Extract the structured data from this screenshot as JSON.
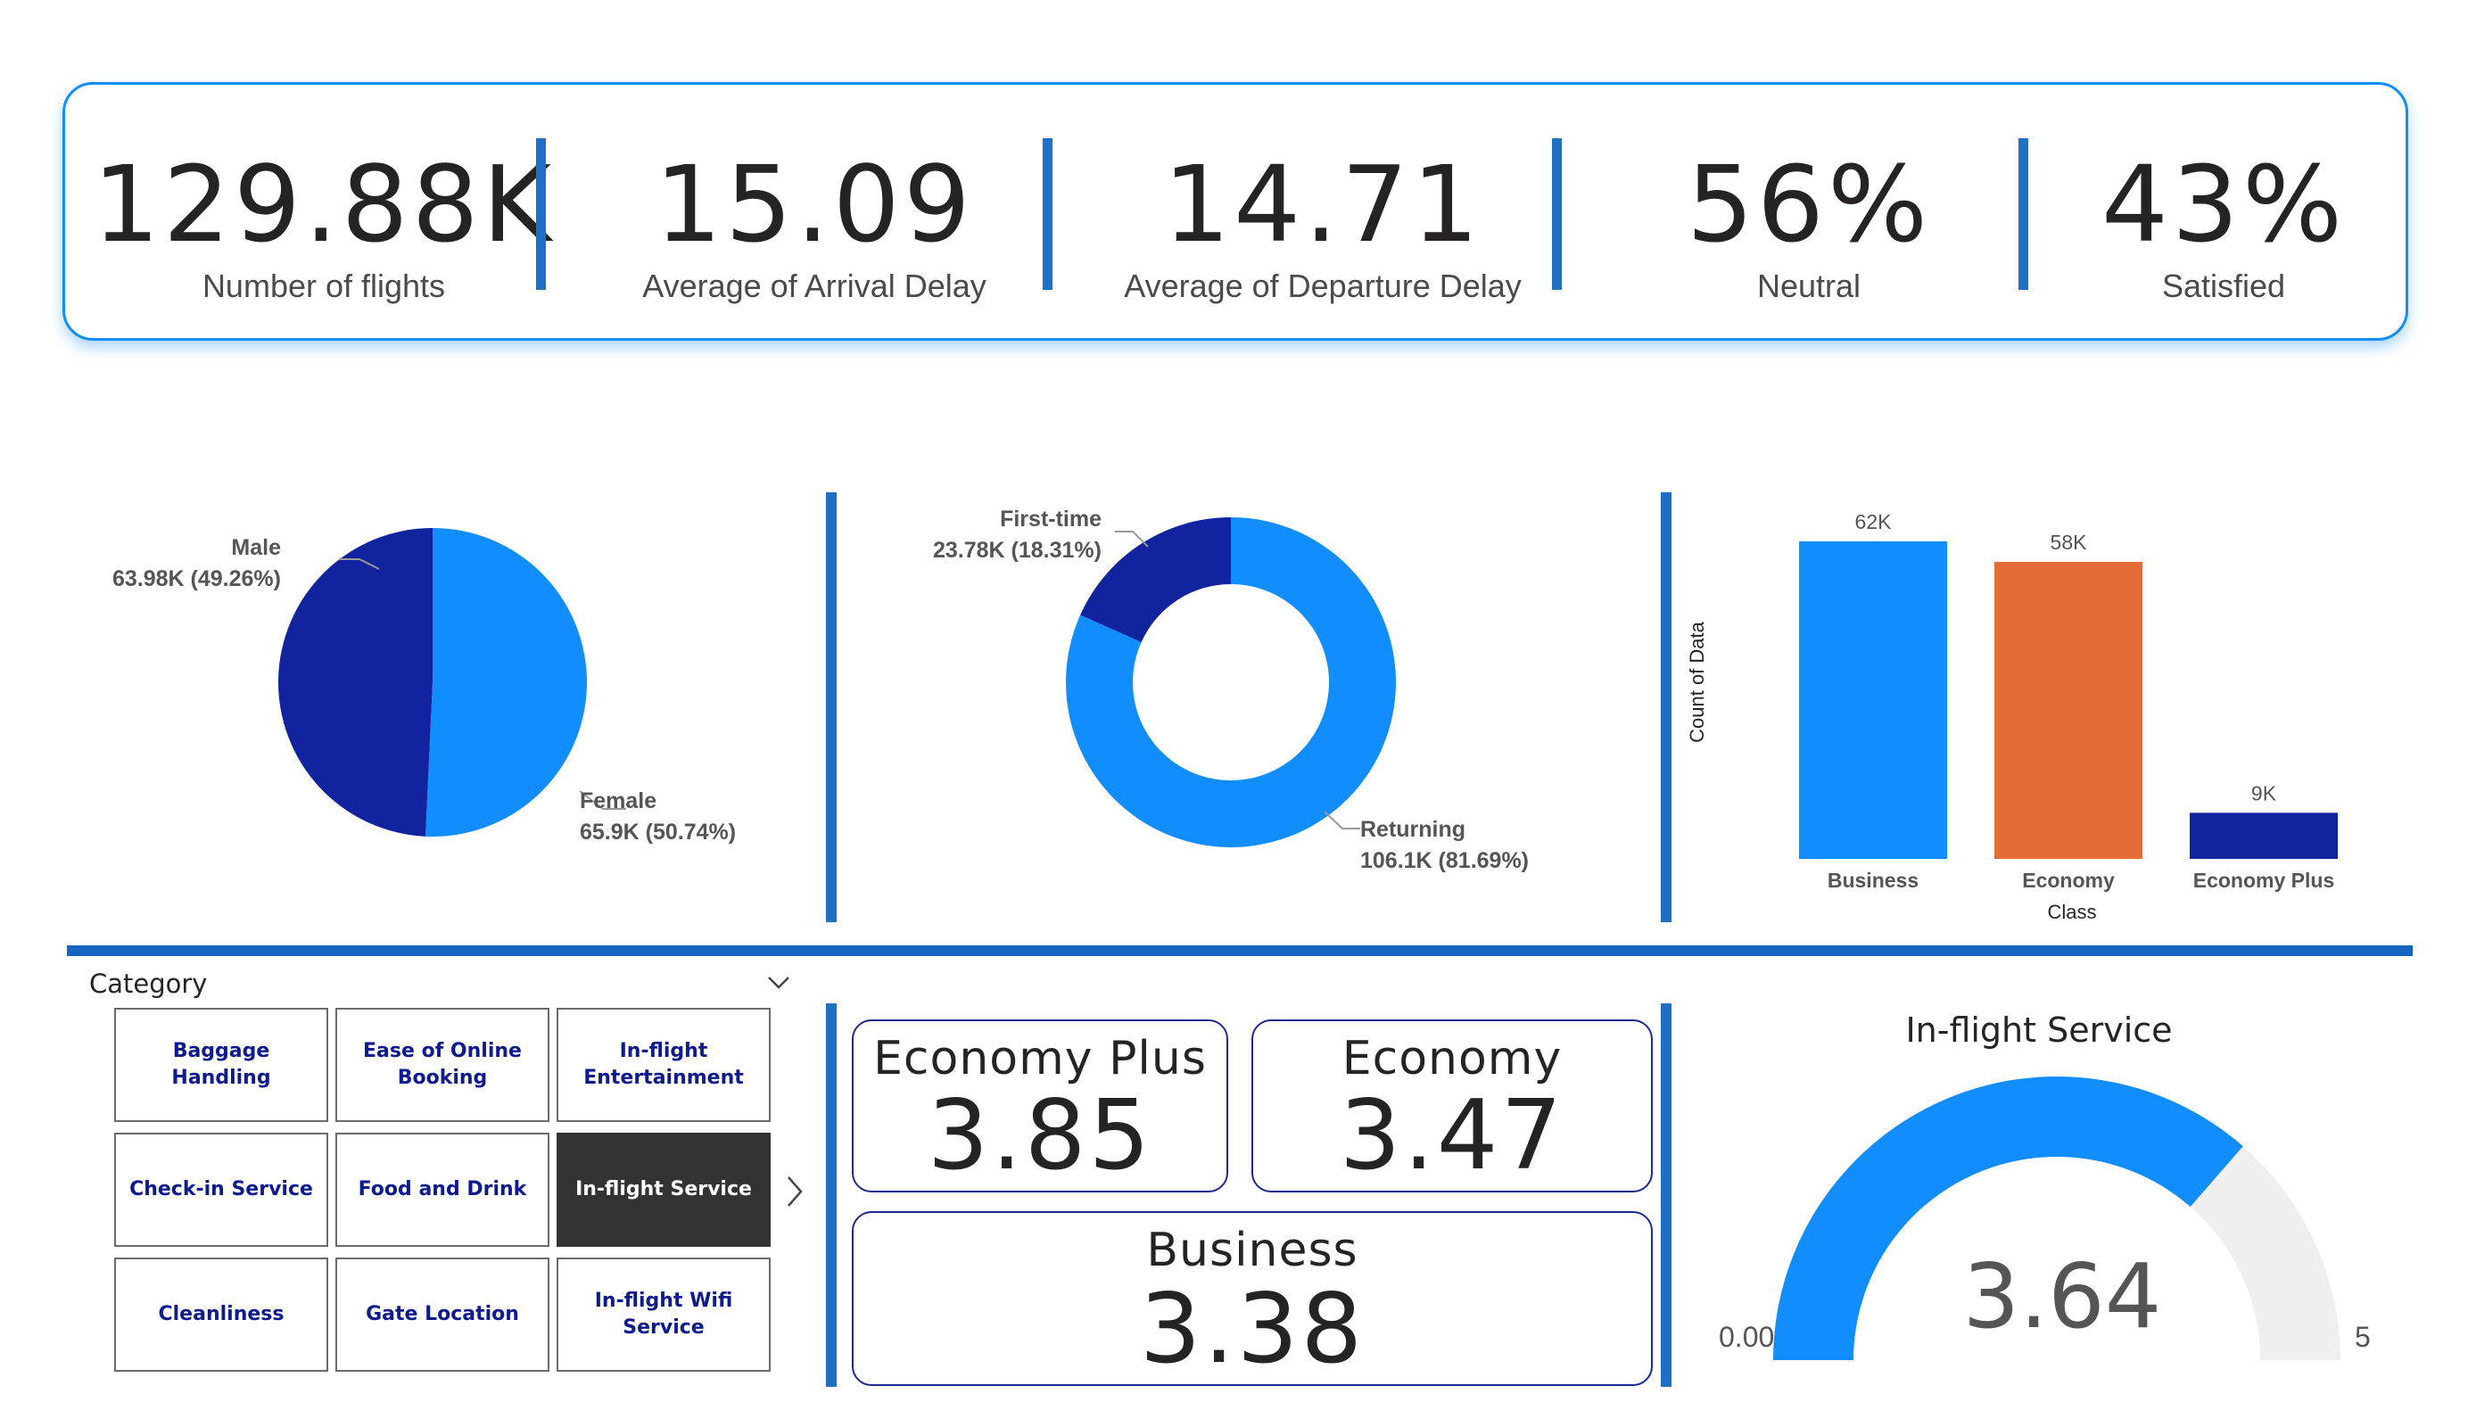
{
  "kpis": [
    {
      "value": "129.88K",
      "label": "Number of flights"
    },
    {
      "value": "15.09",
      "label": "Average of Arrival Delay"
    },
    {
      "value": "14.71",
      "label": "Average of Departure Delay"
    },
    {
      "value": "56%",
      "label": "Neutral"
    },
    {
      "value": "43%",
      "label": "Satisfied"
    }
  ],
  "chart_data": [
    {
      "type": "pie",
      "categories": [
        "Male",
        "Female"
      ],
      "values": [
        63.98,
        65.9
      ],
      "value_labels": [
        "63.98K (49.26%)",
        "65.9K (50.74%)"
      ],
      "colors": [
        "#12239e",
        "#118dff"
      ]
    },
    {
      "type": "pie",
      "variant": "donut",
      "categories": [
        "First-time",
        "Returning"
      ],
      "values": [
        23.78,
        106.1
      ],
      "value_labels": [
        "23.78K (18.31%)",
        "106.1K (81.69%)"
      ],
      "colors": [
        "#12239e",
        "#118dff"
      ]
    },
    {
      "type": "bar",
      "categories": [
        "Business",
        "Economy",
        "Economy Plus"
      ],
      "values": [
        62,
        58,
        9
      ],
      "data_labels": [
        "62K",
        "58K",
        "9K"
      ],
      "colors": [
        "#118dff",
        "#e66c37",
        "#12239e"
      ],
      "xlabel": "Class",
      "ylabel": "Count of Data",
      "ylim": [
        0,
        62
      ]
    },
    {
      "type": "gauge",
      "title": "In-flight Service",
      "value": 3.64,
      "value_label": "3.64",
      "min_label": "0.00",
      "max_label": "5",
      "range": [
        0,
        5
      ],
      "colors": [
        "#118dff",
        "#efefef"
      ]
    }
  ],
  "slicer": {
    "title": "Category",
    "items": [
      "Baggage Handling",
      "Ease of Online Booking",
      "In-flight Entertainment",
      "Check-in Service",
      "Food and Drink",
      "In-flight Service",
      "Cleanliness",
      "Gate Location",
      "In-flight Wifi Service"
    ],
    "selected": "In-flight Service"
  },
  "class_cards": {
    "economy_plus": {
      "title": "Economy Plus",
      "value": "3.85"
    },
    "economy": {
      "title": "Economy",
      "value": "3.47"
    },
    "business": {
      "title": "Business",
      "value": "3.38"
    }
  }
}
